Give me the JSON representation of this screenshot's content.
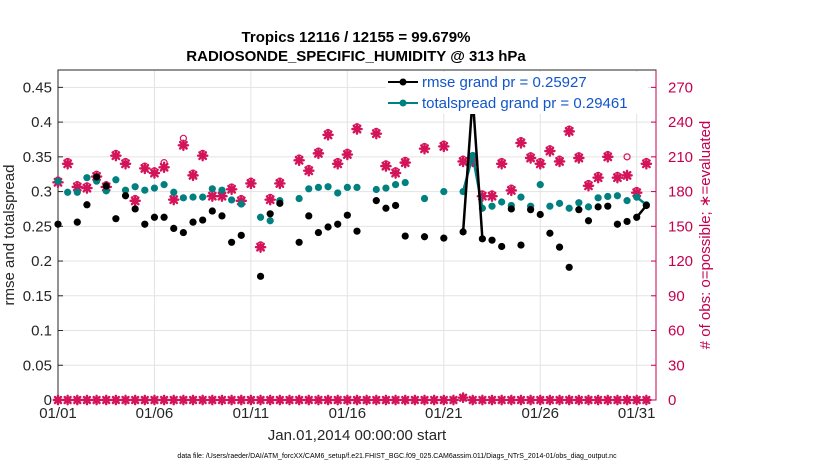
{
  "chart_data": {
    "type": "scatter",
    "title": "Tropics 12116 / 12155 = 99.679%",
    "subtitle": "RADIOSONDE_SPECIFIC_HUMIDITY @ 313 hPa",
    "xlabel": "Jan.01,2014 00:00:00 start",
    "ylabel": "rmse and totalspread",
    "ylabel_right": "# of obs: o=possible; ∗=evaluated",
    "x_tick_labels": [
      "01/01",
      "01/06",
      "01/11",
      "01/16",
      "01/21",
      "01/26",
      "01/31"
    ],
    "x_tick_values": [
      1,
      6,
      11,
      16,
      21,
      26,
      31
    ],
    "xlim": [
      1,
      32
    ],
    "ylim": [
      0,
      0.475
    ],
    "ylim_right": [
      0,
      285
    ],
    "y_ticks": [
      "0",
      "0.05",
      "0.1",
      "0.15",
      "0.2",
      "0.25",
      "0.3",
      "0.35",
      "0.4",
      "0.45"
    ],
    "y_ticks_right": [
      "0",
      "30",
      "60",
      "90",
      "120",
      "150",
      "180",
      "210",
      "240",
      "270"
    ],
    "grid": true,
    "footnote": "data file: /Users/raeder/DAI/ATM_forcXX/CAM6_setup/f.e21.FHIST_BGC.f09_025.CAM6assim.011/Diags_NTrS_2014-01/obs_diag_output.nc",
    "colors": {
      "rmse": "#000000",
      "spread": "#008080",
      "obs": "#d4145a",
      "right_axis": "#c5004f",
      "legend_text": "#1155cc",
      "grid": "#e3e3e3"
    },
    "legend": {
      "placement": "top-right",
      "entries": [
        "rmse grand pr = 0.25927",
        "totalspread grand pr = 0.29461"
      ]
    },
    "series": [
      {
        "name": "rmse",
        "x": [
          1,
          1.5,
          2,
          2.5,
          3,
          3.5,
          4,
          4.5,
          5,
          5.5,
          6,
          6.5,
          7,
          7.5,
          8,
          8.5,
          9,
          9.5,
          10,
          10.5,
          11,
          11.5,
          12,
          12.5,
          13,
          13.5,
          14,
          14.5,
          15,
          15.5,
          16,
          16.5,
          17,
          17.5,
          18,
          18.5,
          19,
          19.5,
          20,
          20.5,
          21,
          21.5,
          22,
          22.5,
          23,
          23.5,
          24,
          24.5,
          25,
          25.5,
          26,
          26.5,
          27,
          27.5,
          28,
          28.5,
          29,
          29.5,
          30,
          30.5,
          31,
          31.5
        ],
        "values": [
          0.253,
          null,
          0.256,
          0.281,
          0.321,
          0.308,
          0.261,
          0.294,
          0.275,
          0.253,
          0.263,
          0.263,
          0.247,
          0.241,
          0.256,
          0.259,
          0.272,
          0.265,
          0.227,
          0.237,
          null,
          0.178,
          0.268,
          0.283,
          null,
          0.227,
          0.265,
          0.241,
          0.249,
          0.253,
          0.266,
          0.243,
          null,
          0.287,
          0.276,
          0.28,
          0.236,
          null,
          0.235,
          null,
          0.233,
          null,
          0.242,
          0.436,
          0.232,
          0.23,
          0.221,
          0.275,
          0.223,
          0.274,
          0.267,
          0.24,
          0.22,
          0.191,
          0.274,
          0.258,
          0.278,
          0.279,
          0.253,
          0.257,
          0.263,
          0.28
        ]
      },
      {
        "name": "totalspread",
        "x": [
          1,
          1.5,
          2,
          2.5,
          3,
          3.5,
          4,
          4.5,
          5,
          5.5,
          6,
          6.5,
          7,
          7.5,
          8,
          8.5,
          9,
          9.5,
          10,
          10.5,
          11,
          11.5,
          12,
          12.5,
          13,
          13.5,
          14,
          14.5,
          15,
          15.5,
          16,
          16.5,
          17,
          17.5,
          18,
          18.5,
          19,
          19.5,
          20,
          20.5,
          21,
          21.5,
          22,
          22.5,
          23,
          23.5,
          24,
          24.5,
          25,
          25.5,
          26,
          26.5,
          27,
          27.5,
          28,
          28.5,
          29,
          29.5,
          30,
          30.5,
          31,
          31.5
        ],
        "values": [
          0.315,
          0.299,
          0.299,
          0.32,
          0.315,
          0.301,
          0.317,
          0.302,
          0.307,
          0.302,
          0.305,
          0.31,
          0.299,
          0.291,
          0.292,
          0.292,
          0.304,
          0.302,
          0.288,
          0.282,
          null,
          0.263,
          0.258,
          0.287,
          null,
          0.29,
          0.304,
          0.306,
          0.307,
          0.298,
          0.306,
          0.306,
          null,
          0.303,
          0.305,
          0.31,
          0.313,
          null,
          0.29,
          null,
          0.3,
          null,
          0.3,
          0.352,
          0.276,
          0.279,
          0.285,
          0.28,
          0.292,
          0.279,
          0.31,
          0.279,
          0.283,
          0.276,
          0.284,
          0.278,
          0.291,
          0.293,
          0.294,
          0.287,
          0.292,
          0.281
        ]
      },
      {
        "name": "obs_evaluated",
        "x": [
          1,
          1.5,
          2,
          2.5,
          3,
          3.5,
          4,
          4.5,
          5,
          5.5,
          6,
          6.5,
          7,
          7.5,
          8,
          8.5,
          9,
          9.5,
          10,
          10.5,
          11,
          11.5,
          12,
          12.5,
          13,
          13.5,
          14,
          14.5,
          15,
          15.5,
          16,
          16.5,
          17,
          17.5,
          18,
          18.5,
          19,
          19.5,
          20,
          20.5,
          21,
          21.5,
          22,
          22.5,
          23,
          23.5,
          24,
          24.5,
          25,
          25.5,
          26,
          26.5,
          27,
          27.5,
          28,
          28.5,
          29,
          29.5,
          30,
          30.5,
          31,
          31.5
        ],
        "values": [
          188,
          204,
          184,
          183,
          193,
          184,
          211,
          204,
          172,
          200,
          196,
          201,
          173,
          220,
          194,
          211,
          176,
          176,
          182,
          172,
          187,
          132,
          173,
          187,
          null,
          207,
          198,
          213,
          229,
          204,
          212,
          234,
          null,
          230,
          202,
          196,
          205,
          null,
          217,
          null,
          219,
          null,
          206,
          206,
          176,
          176,
          204,
          181,
          222,
          209,
          204,
          215,
          206,
          232,
          209,
          185,
          192,
          210,
          192,
          194,
          179,
          204
        ]
      },
      {
        "name": "obs_possible",
        "x": [
          1,
          1.5,
          2,
          2.5,
          3,
          3.5,
          4,
          4.5,
          5,
          5.5,
          6,
          6.5,
          7,
          7.5,
          8,
          8.5,
          9,
          9.5,
          10,
          10.5,
          11,
          11.5,
          12,
          12.5,
          13,
          13.5,
          14,
          14.5,
          15,
          15.5,
          16,
          16.5,
          17,
          17.5,
          18,
          18.5,
          19,
          19.5,
          20,
          20.5,
          21,
          21.5,
          22,
          22.5,
          23,
          23.5,
          24,
          24.5,
          25,
          25.5,
          26,
          26.5,
          27,
          27.5,
          28,
          28.5,
          29,
          29.5,
          30,
          30.5,
          31,
          31.5
        ],
        "values": [
          190,
          206,
          186,
          185,
          195,
          186,
          213,
          206,
          174,
          202,
          198,
          205,
          175,
          226,
          196,
          213,
          178,
          178,
          184,
          174,
          189,
          134,
          175,
          189,
          null,
          209,
          200,
          215,
          231,
          206,
          214,
          236,
          null,
          232,
          204,
          198,
          207,
          null,
          219,
          null,
          221,
          null,
          208,
          208,
          178,
          178,
          206,
          183,
          224,
          211,
          206,
          217,
          208,
          234,
          211,
          187,
          194,
          212,
          194,
          210,
          181,
          206
        ]
      },
      {
        "name": "obs_zero",
        "x": [
          1,
          1.5,
          2,
          2.5,
          3,
          3.5,
          4,
          4.5,
          5,
          5.5,
          6,
          6.5,
          7,
          7.5,
          8,
          8.5,
          9,
          9.5,
          10,
          10.5,
          11,
          11.5,
          12,
          12.5,
          13,
          13.5,
          14,
          14.5,
          15,
          15.5,
          16,
          16.5,
          17,
          17.5,
          18,
          18.5,
          19,
          19.5,
          20,
          20.5,
          21,
          21.5,
          22,
          22.5,
          23,
          23.5,
          24,
          24.5,
          25,
          25.5,
          26,
          26.5,
          27,
          27.5,
          28,
          28.5,
          29,
          29.5,
          30,
          30.5,
          31,
          31.5
        ],
        "values": [
          0,
          0,
          0,
          0,
          0,
          0,
          0,
          0,
          0,
          0,
          0,
          0,
          0,
          0,
          0,
          0,
          0,
          0,
          0,
          0,
          0,
          0,
          0,
          0,
          0,
          0,
          0,
          0,
          0,
          0,
          0,
          0,
          0,
          0,
          0,
          0,
          0,
          0,
          0,
          0,
          0,
          0,
          2,
          0,
          0,
          0,
          0,
          0,
          0,
          0,
          0,
          0,
          0,
          0,
          0,
          0,
          0,
          0,
          0,
          0,
          0,
          0
        ]
      }
    ]
  }
}
